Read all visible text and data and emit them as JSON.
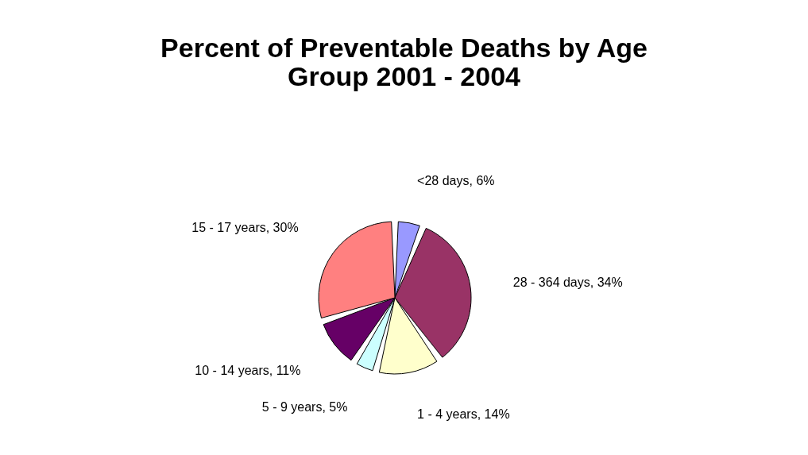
{
  "chart_data": {
    "type": "pie",
    "title": "Percent of Preventable Deaths by Age Group 2001 - 2004",
    "categories": [
      "<28 days",
      "28 - 364 days",
      "1 - 4 years",
      "5 - 9 years",
      "10 - 14 years",
      "15 - 17 years"
    ],
    "values": [
      6,
      34,
      14,
      5,
      11,
      30
    ],
    "colors": [
      "#9999ff",
      "#993366",
      "#ffffcc",
      "#ccffff",
      "#660066",
      "#ff8080"
    ],
    "value_labels": [
      "6%",
      "34%",
      "14%",
      "5%",
      "11%",
      "30%"
    ],
    "legend": false
  }
}
